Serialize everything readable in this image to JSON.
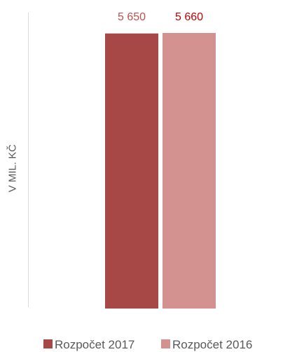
{
  "chart_data": {
    "type": "bar",
    "ylabel": "V MIL. KČ",
    "categories": [
      ""
    ],
    "series": [
      {
        "name": "Rozpočet 2017",
        "values": [
          5650
        ],
        "data_label": "5 650",
        "color": "#a84846",
        "label_color": "#c0504d"
      },
      {
        "name": "Rozpočet 2016",
        "values": [
          5660
        ],
        "data_label": "5 660",
        "color": "#d39290",
        "label_color": "#c00000"
      }
    ],
    "ylim": [
      0,
      5660
    ],
    "grid": false,
    "legend_position": "bottom"
  }
}
